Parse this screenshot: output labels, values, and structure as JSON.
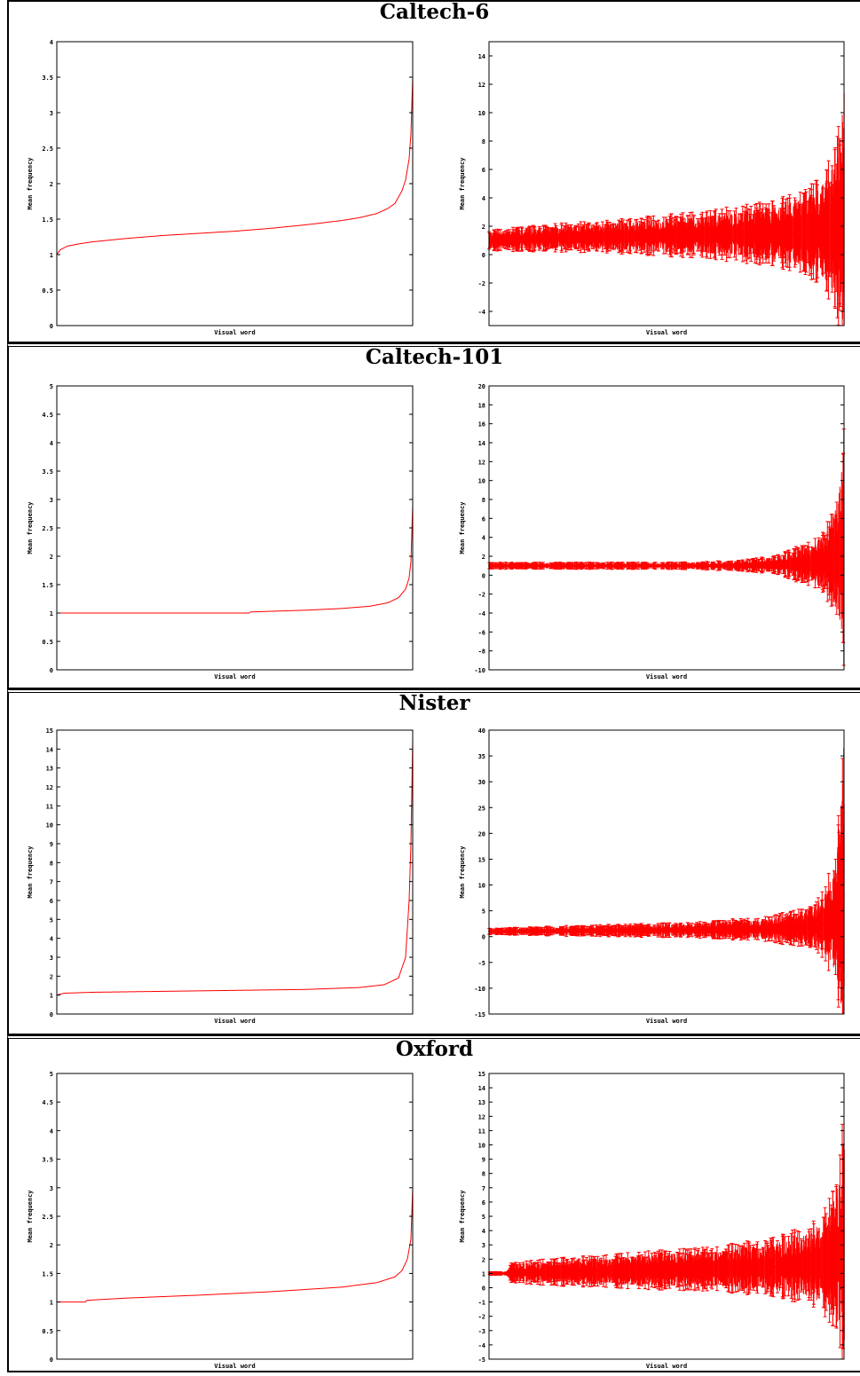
{
  "figure": {
    "panels": [
      {
        "title": "Caltech-6"
      },
      {
        "title": "Caltech-101"
      },
      {
        "title": "Nister"
      },
      {
        "title": "Oxford"
      }
    ]
  },
  "colors": {
    "series": "#ff0000",
    "axis": "#000000"
  },
  "chart_data": [
    {
      "panel": "Caltech-6",
      "type": "line",
      "xlabel": "Visual word",
      "ylabel": "Mean frequency",
      "ylim": [
        0,
        4
      ],
      "yticks": [
        0,
        0.5,
        1,
        1.5,
        2,
        2.5,
        3,
        3.5,
        4
      ],
      "ytick_labels": [
        "0",
        "0.5",
        "1",
        "1.5",
        "2",
        "2.5",
        "3",
        "3.5",
        "4"
      ],
      "grid": false,
      "legend": "none",
      "x": [
        0,
        0.01,
        0.03,
        0.06,
        0.1,
        0.2,
        0.3,
        0.4,
        0.5,
        0.6,
        0.7,
        0.8,
        0.85,
        0.9,
        0.93,
        0.95,
        0.97,
        0.98,
        0.99,
        0.995,
        1.0
      ],
      "values": [
        1.0,
        1.07,
        1.12,
        1.15,
        1.18,
        1.23,
        1.27,
        1.3,
        1.33,
        1.37,
        1.42,
        1.48,
        1.52,
        1.58,
        1.65,
        1.72,
        1.9,
        2.05,
        2.35,
        2.7,
        3.5
      ]
    },
    {
      "panel": "Caltech-6",
      "type": "line",
      "xlabel": "Visual word",
      "ylabel": "Mean frequency",
      "ylim": [
        -5,
        15
      ],
      "yticks": [
        -4,
        -2,
        0,
        2,
        4,
        6,
        8,
        10,
        12,
        14
      ],
      "ytick_labels": [
        "-4",
        "-2",
        "0",
        "2",
        "4",
        "6",
        "8",
        "10",
        "12",
        "14"
      ],
      "grid": false,
      "legend": "none",
      "x": [
        0,
        0.2,
        0.4,
        0.6,
        0.8,
        0.9,
        0.95,
        0.98,
        1.0
      ],
      "values": [
        1.0,
        1.2,
        1.3,
        1.4,
        1.5,
        1.6,
        1.7,
        1.9,
        2.5
      ],
      "error": [
        0.6,
        0.8,
        1.0,
        1.3,
        1.8,
        2.5,
        3.5,
        5.0,
        9.0
      ]
    },
    {
      "panel": "Caltech-101",
      "type": "line",
      "xlabel": "Visual word",
      "ylabel": "Mean frequency",
      "ylim": [
        0,
        5
      ],
      "yticks": [
        0,
        0.5,
        1,
        1.5,
        2,
        2.5,
        3,
        3.5,
        4,
        4.5,
        5
      ],
      "ytick_labels": [
        "0",
        "0.5",
        "1",
        "1.5",
        "2",
        "2.5",
        "3",
        "3.5",
        "4",
        "4.5",
        "5"
      ],
      "grid": false,
      "legend": "none",
      "x": [
        0,
        0.3,
        0.54,
        0.545,
        0.7,
        0.8,
        0.88,
        0.93,
        0.96,
        0.98,
        0.99,
        0.995,
        1.0
      ],
      "values": [
        1.0,
        1.0,
        1.0,
        1.02,
        1.05,
        1.08,
        1.12,
        1.18,
        1.27,
        1.42,
        1.62,
        1.9,
        2.9
      ]
    },
    {
      "panel": "Caltech-101",
      "type": "line",
      "xlabel": "Visual word",
      "ylabel": "Mean frequency",
      "ylim": [
        -10,
        20
      ],
      "yticks": [
        -10,
        -8,
        -6,
        -4,
        -2,
        0,
        2,
        4,
        6,
        8,
        10,
        12,
        14,
        16,
        18,
        20
      ],
      "ytick_labels": [
        "-10",
        "-8",
        "-6",
        "-4",
        "-2",
        "0",
        "2",
        "4",
        "6",
        "8",
        "10",
        "12",
        "14",
        "16",
        "18",
        "20"
      ],
      "grid": false,
      "legend": "none",
      "x": [
        0,
        0.5,
        0.6,
        0.7,
        0.8,
        0.9,
        0.95,
        0.98,
        1.0
      ],
      "values": [
        1.0,
        1.0,
        1.0,
        1.0,
        1.1,
        1.2,
        1.4,
        1.8,
        3.0
      ],
      "error": [
        0.3,
        0.3,
        0.35,
        0.45,
        0.8,
        1.8,
        3.0,
        5.5,
        10.0
      ]
    },
    {
      "panel": "Nister",
      "type": "line",
      "xlabel": "Visual word",
      "ylabel": "Mean frequency",
      "ylim": [
        0,
        15
      ],
      "yticks": [
        0,
        1,
        2,
        3,
        4,
        5,
        6,
        7,
        8,
        9,
        10,
        11,
        12,
        13,
        14,
        15
      ],
      "ytick_labels": [
        "0",
        "1",
        "2",
        "3",
        "4",
        "5",
        "6",
        "7",
        "8",
        "9",
        "10",
        "11",
        "12",
        "13",
        "14",
        "15"
      ],
      "grid": false,
      "legend": "none",
      "x": [
        0,
        0.02,
        0.1,
        0.3,
        0.5,
        0.7,
        0.85,
        0.92,
        0.96,
        0.98,
        0.99,
        0.995,
        1.0
      ],
      "values": [
        1.0,
        1.1,
        1.15,
        1.2,
        1.25,
        1.3,
        1.4,
        1.55,
        1.9,
        3.0,
        6.0,
        9.0,
        14.5
      ]
    },
    {
      "panel": "Nister",
      "type": "line",
      "xlabel": "Visual word",
      "ylabel": "Mean frequency",
      "ylim": [
        -15,
        40
      ],
      "yticks": [
        -15,
        -10,
        -5,
        0,
        5,
        10,
        15,
        20,
        25,
        30,
        35,
        40
      ],
      "ytick_labels": [
        "-15",
        "-10",
        "-5",
        "0",
        "5",
        "10",
        "15",
        "20",
        "25",
        "30",
        "35",
        "40"
      ],
      "grid": false,
      "legend": "none",
      "x": [
        0,
        0.2,
        0.4,
        0.6,
        0.8,
        0.9,
        0.95,
        0.98,
        1.0
      ],
      "values": [
        1.0,
        1.1,
        1.2,
        1.3,
        1.5,
        1.8,
        2.5,
        4.0,
        8.0
      ],
      "error": [
        0.5,
        0.8,
        1.0,
        1.3,
        2.0,
        3.5,
        6.0,
        12.0,
        30.0
      ]
    },
    {
      "panel": "Oxford",
      "type": "line",
      "xlabel": "Visual word",
      "ylabel": "Mean frequency",
      "ylim": [
        0,
        5
      ],
      "yticks": [
        0,
        0.5,
        1,
        1.5,
        2,
        2.5,
        3,
        3.5,
        4,
        4.5,
        5
      ],
      "ytick_labels": [
        "0",
        "0.5",
        "1",
        "1.5",
        "2",
        "2.5",
        "3",
        "3.5",
        "4",
        "4.5",
        "5"
      ],
      "grid": false,
      "legend": "none",
      "x": [
        0,
        0.08,
        0.085,
        0.2,
        0.4,
        0.6,
        0.8,
        0.9,
        0.95,
        0.97,
        0.985,
        0.995,
        1.0
      ],
      "values": [
        1.0,
        1.0,
        1.03,
        1.07,
        1.12,
        1.18,
        1.26,
        1.34,
        1.44,
        1.55,
        1.75,
        2.1,
        3.0
      ]
    },
    {
      "panel": "Oxford",
      "type": "line",
      "xlabel": "Visual word",
      "ylabel": "Mean frequency",
      "ylim": [
        -5,
        15
      ],
      "yticks": [
        -5,
        -4,
        -3,
        -2,
        -1,
        0,
        1,
        2,
        3,
        4,
        5,
        6,
        7,
        8,
        9,
        10,
        11,
        12,
        13,
        14,
        15
      ],
      "ytick_labels": [
        "-5",
        "-4",
        "-3",
        "-2",
        "-1",
        "0",
        "1",
        "2",
        "3",
        "4",
        "5",
        "6",
        "7",
        "8",
        "9",
        "10",
        "11",
        "12",
        "13",
        "14",
        "15"
      ],
      "grid": false,
      "legend": "none",
      "x": [
        0,
        0.05,
        0.06,
        0.3,
        0.6,
        0.8,
        0.9,
        0.95,
        0.98,
        1.0
      ],
      "values": [
        1.0,
        1.0,
        1.05,
        1.15,
        1.3,
        1.45,
        1.6,
        1.8,
        2.2,
        3.0
      ],
      "error": [
        0.1,
        0.1,
        0.6,
        0.9,
        1.2,
        1.6,
        2.2,
        3.0,
        4.5,
        8.0
      ]
    }
  ]
}
